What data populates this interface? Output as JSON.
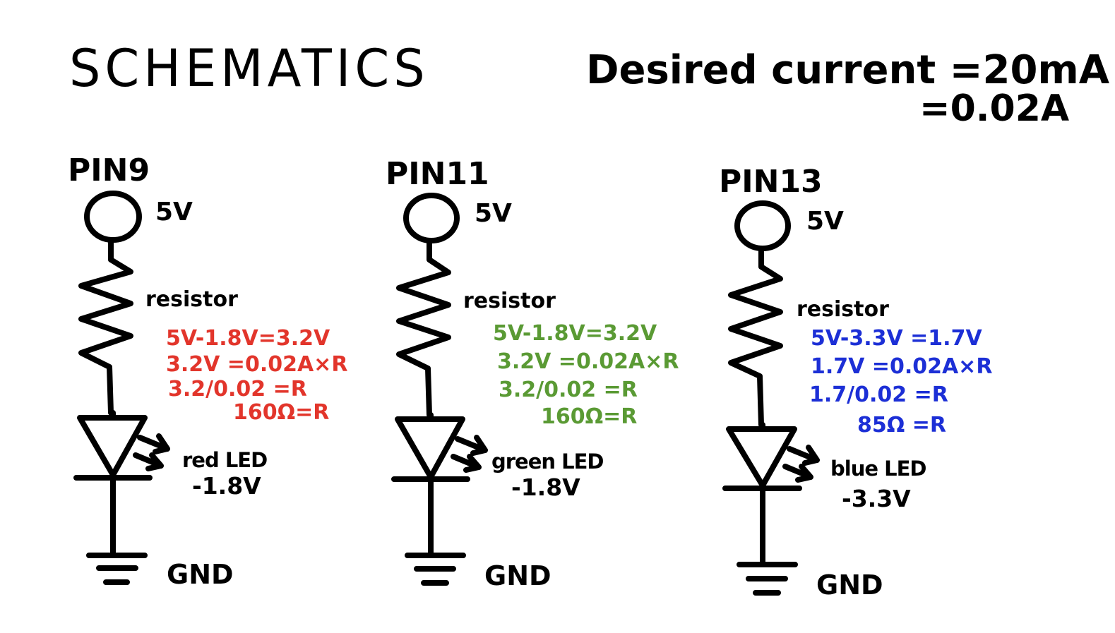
{
  "title": "SCHEMATICS",
  "desired_current": {
    "line1": "Desired current =20mA",
    "line2": "=0.02A"
  },
  "circuits": [
    {
      "pin": "PIN9",
      "voltage": "5V",
      "resistor_label": "resistor",
      "calc_color": "#e2352b",
      "calc": [
        "5V-1.8V=3.2V",
        "3.2V =0.02A×R",
        "3.2/0.02 =R",
        "160Ω=R"
      ],
      "led_name": "red LED",
      "led_drop": "-1.8V",
      "ground": "GND"
    },
    {
      "pin": "PIN11",
      "voltage": "5V",
      "resistor_label": "resistor",
      "calc_color": "#5a9a34",
      "calc": [
        "5V-1.8V=3.2V",
        "3.2V =0.02A×R",
        "3.2/0.02 =R",
        "160Ω=R"
      ],
      "led_name": "green LED",
      "led_drop": "-1.8V",
      "ground": "GND"
    },
    {
      "pin": "PIN13",
      "voltage": "5V",
      "resistor_label": "resistor",
      "calc_color": "#1c2fd6",
      "calc": [
        "5V-3.3V =1.7V",
        "1.7V =0.02A×R",
        "1.7/0.02 =R",
        "85Ω =R"
      ],
      "led_name": "blue LED",
      "led_drop": "-3.3V",
      "ground": "GND"
    }
  ]
}
